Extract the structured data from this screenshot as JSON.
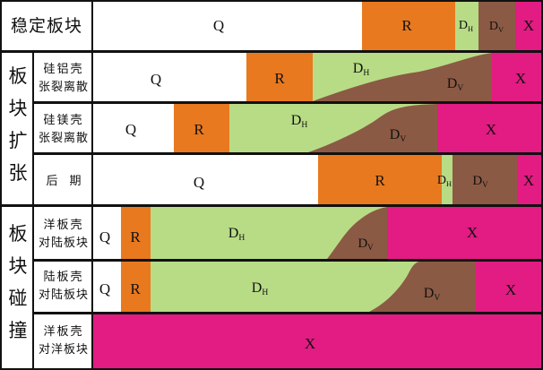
{
  "colors": {
    "Q": "#ffffff",
    "R": "#e8791f",
    "DH": "#b8dc86",
    "DV": "#8b5a44",
    "X": "#e21c82",
    "border": "#111111"
  },
  "groups": {
    "stable": "稳定板块",
    "expansion": [
      "板",
      "块",
      "扩",
      "张"
    ],
    "collision": [
      "板",
      "块",
      "碰",
      "撞"
    ]
  },
  "rows": [
    {
      "id": "stable",
      "label": []
    },
    {
      "id": "si-al",
      "label": [
        "硅铝壳",
        "张裂离散"
      ]
    },
    {
      "id": "si-mg",
      "label": [
        "硅镁壳",
        "张裂离散"
      ]
    },
    {
      "id": "late",
      "label": [
        "后　期"
      ]
    },
    {
      "id": "ocean-continent",
      "label": [
        "洋板壳",
        "对陆板块"
      ]
    },
    {
      "id": "continent-continent",
      "label": [
        "陆板壳",
        "对陆板块"
      ]
    },
    {
      "id": "ocean-ocean",
      "label": [
        "洋板壳",
        "对洋板块"
      ]
    }
  ],
  "zones": {
    "Q": "Q",
    "R": "R",
    "D": "D",
    "H": "H",
    "V": "V",
    "X": "X"
  }
}
